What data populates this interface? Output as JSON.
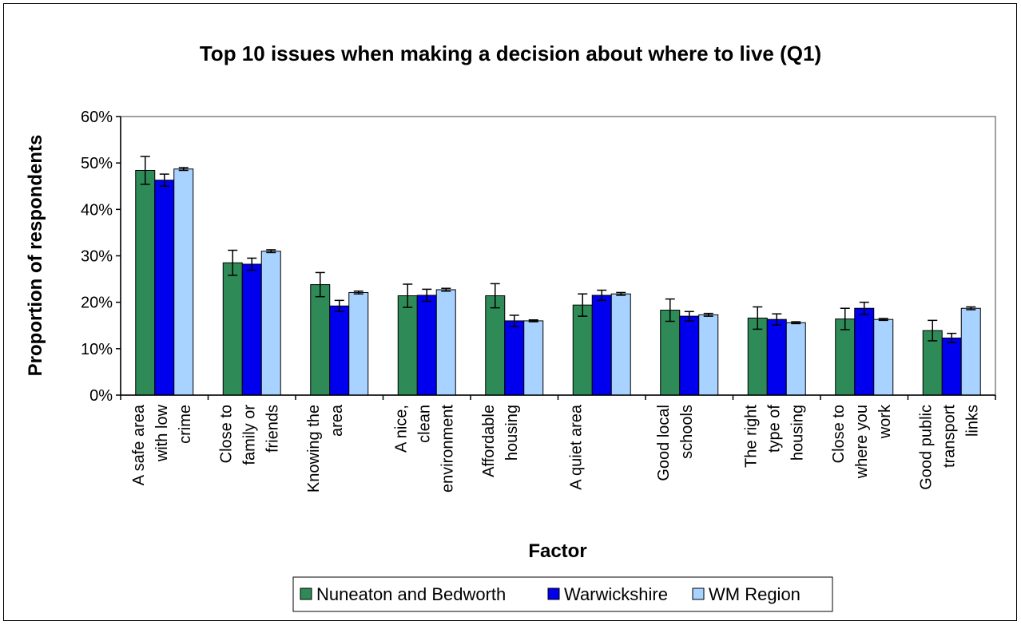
{
  "chart_data": {
    "type": "bar",
    "title": "Top 10 issues when making a decision about where to live (Q1)",
    "xlabel": "Factor",
    "ylabel": "Proportion of respondents",
    "ylim": [
      0,
      0.6
    ],
    "yticks": [
      0,
      0.1,
      0.2,
      0.3,
      0.4,
      0.5,
      0.6
    ],
    "ytick_labels": [
      "0%",
      "10%",
      "20%",
      "30%",
      "40%",
      "50%",
      "60%"
    ],
    "grid": false,
    "legend_position": "bottom",
    "categories": [
      [
        "A safe area",
        "with low",
        "crime"
      ],
      [
        "Close to",
        "family or",
        "friends"
      ],
      [
        "Knowing the",
        "area"
      ],
      [
        "A nice,",
        "clean",
        "environment"
      ],
      [
        "Affordable",
        "housing"
      ],
      [
        "A quiet area"
      ],
      [
        "Good local",
        "schools"
      ],
      [
        "The right",
        "type of",
        "housing"
      ],
      [
        "Close to",
        "where you",
        "work"
      ],
      [
        "Good public",
        "transport",
        "links"
      ]
    ],
    "series": [
      {
        "name": "Nuneaton and Bedworth",
        "color": "#2e8b57",
        "values": [
          0.484,
          0.285,
          0.238,
          0.214,
          0.214,
          0.194,
          0.183,
          0.166,
          0.164,
          0.139
        ],
        "errors": [
          0.03,
          0.027,
          0.026,
          0.025,
          0.026,
          0.024,
          0.024,
          0.024,
          0.023,
          0.022
        ]
      },
      {
        "name": "Warwickshire",
        "color": "#0000ee",
        "values": [
          0.463,
          0.282,
          0.192,
          0.215,
          0.16,
          0.215,
          0.17,
          0.163,
          0.187,
          0.123
        ],
        "errors": [
          0.013,
          0.013,
          0.012,
          0.013,
          0.012,
          0.011,
          0.01,
          0.012,
          0.013,
          0.01
        ]
      },
      {
        "name": "WM Region",
        "color": "#a8d2ff",
        "values": [
          0.487,
          0.31,
          0.221,
          0.227,
          0.16,
          0.218,
          0.173,
          0.156,
          0.163,
          0.187
        ],
        "errors": [
          0.003,
          0.003,
          0.003,
          0.003,
          0.002,
          0.003,
          0.003,
          0.002,
          0.002,
          0.003
        ]
      }
    ]
  }
}
